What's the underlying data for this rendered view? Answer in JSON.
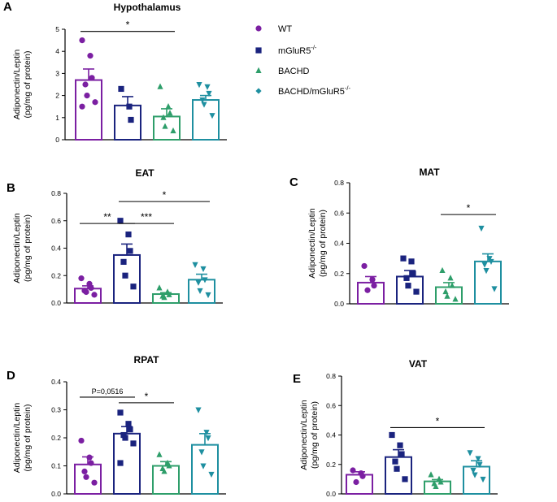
{
  "colors": {
    "WT": "#7b1fa2",
    "mGluR5": "#1a237e",
    "BACHD": "#2e9e6a",
    "BACHD_mGluR5": "#1e8fa0"
  },
  "legend": [
    {
      "key": "WT",
      "label": "WT",
      "sup": "",
      "marker": "circle"
    },
    {
      "key": "mGluR5",
      "label": "mGluR5",
      "sup": "-/-",
      "marker": "square"
    },
    {
      "key": "BACHD",
      "label": "BACHD",
      "sup": "",
      "marker": "triangle-up"
    },
    {
      "key": "BACHD_mGluR5",
      "label": "BACHD/mGluR5",
      "sup": "-/-",
      "marker": "diamond"
    }
  ],
  "chart_data": [
    {
      "panel": "A",
      "title": "Hypothalamus",
      "type": "bar",
      "ylabel_line1": "Adiponectin/Leptin",
      "ylabel_line2": "(pg/mg of protein)",
      "ylim": [
        0,
        5
      ],
      "yticks": [
        0,
        1,
        2,
        3,
        4,
        5
      ],
      "tick_labels": [
        "0",
        "1",
        "2",
        "3",
        "4",
        "5"
      ],
      "groups": [
        {
          "key": "WT",
          "mean": 2.7,
          "sem": 0.5,
          "points": [
            4.5,
            3.8,
            2.8,
            2.5,
            2.0,
            1.7,
            1.5
          ]
        },
        {
          "key": "mGluR5",
          "mean": 1.55,
          "sem": 0.4,
          "points": [
            2.3,
            1.5,
            0.9
          ]
        },
        {
          "key": "BACHD",
          "mean": 1.05,
          "sem": 0.35,
          "points": [
            2.4,
            1.5,
            1.2,
            1.0,
            0.6,
            0.4
          ]
        },
        {
          "key": "BACHD_mGluR5",
          "mean": 1.8,
          "sem": 0.2,
          "points": [
            2.5,
            2.4,
            2.1,
            1.8,
            1.6,
            1.1
          ]
        }
      ],
      "sig": [
        {
          "from": 0,
          "to": 2,
          "label": "*"
        }
      ]
    },
    {
      "panel": "B",
      "title": "EAT",
      "type": "bar",
      "ylabel_line1": "Adiponectin/Leptin",
      "ylabel_line2": "(pg/mg of protein)",
      "ylim": [
        0,
        0.8
      ],
      "yticks": [
        0,
        0.2,
        0.4,
        0.6,
        0.8
      ],
      "tick_labels": [
        "0.0",
        "0.2",
        "0.4",
        "0.6",
        "0.8"
      ],
      "groups": [
        {
          "key": "WT",
          "mean": 0.105,
          "sem": 0.02,
          "points": [
            0.18,
            0.14,
            0.11,
            0.09,
            0.08,
            0.06
          ]
        },
        {
          "key": "mGluR5",
          "mean": 0.35,
          "sem": 0.08,
          "points": [
            0.6,
            0.5,
            0.38,
            0.3,
            0.2,
            0.12
          ]
        },
        {
          "key": "BACHD",
          "mean": 0.065,
          "sem": 0.01,
          "points": [
            0.11,
            0.08,
            0.06,
            0.05,
            0.04
          ]
        },
        {
          "key": "BACHD_mGluR5",
          "mean": 0.17,
          "sem": 0.04,
          "points": [
            0.28,
            0.25,
            0.17,
            0.15,
            0.09,
            0.06
          ]
        }
      ],
      "sig": [
        {
          "from": 0,
          "to": 1,
          "label": "**"
        },
        {
          "from": 1,
          "to": 2,
          "label": "***"
        },
        {
          "from": 1,
          "to": 3,
          "label": "*"
        }
      ]
    },
    {
      "panel": "C",
      "title": "MAT",
      "type": "bar",
      "ylabel_line1": "Adiponectin/Leptin",
      "ylabel_line2": "(pg/mg of protein)",
      "ylim": [
        0,
        0.8
      ],
      "yticks": [
        0,
        0.2,
        0.4,
        0.6,
        0.8
      ],
      "tick_labels": [
        "0.0",
        "0.2",
        "0.4",
        "0.6",
        "0.8"
      ],
      "groups": [
        {
          "key": "WT",
          "mean": 0.14,
          "sem": 0.04,
          "points": [
            0.25,
            0.16,
            0.12,
            0.09
          ]
        },
        {
          "key": "mGluR5",
          "mean": 0.18,
          "sem": 0.04,
          "points": [
            0.3,
            0.28,
            0.2,
            0.17,
            0.12,
            0.08
          ]
        },
        {
          "key": "BACHD",
          "mean": 0.11,
          "sem": 0.03,
          "points": [
            0.22,
            0.17,
            0.12,
            0.08,
            0.05,
            0.03
          ]
        },
        {
          "key": "BACHD_mGluR5",
          "mean": 0.28,
          "sem": 0.05,
          "points": [
            0.5,
            0.3,
            0.28,
            0.26,
            0.22,
            0.1
          ]
        }
      ],
      "sig": [
        {
          "from": 2,
          "to": 3,
          "label": "*"
        }
      ]
    },
    {
      "panel": "D",
      "title": "RPAT",
      "type": "bar",
      "ylabel_line1": "Adiponectin/Leptin",
      "ylabel_line2": "(pg/mg of protein)",
      "ylim": [
        0,
        0.4
      ],
      "yticks": [
        0,
        0.1,
        0.2,
        0.3,
        0.4
      ],
      "tick_labels": [
        "0.0",
        "0.1",
        "0.2",
        "0.3",
        "0.4"
      ],
      "groups": [
        {
          "key": "WT",
          "mean": 0.105,
          "sem": 0.027,
          "points": [
            0.19,
            0.13,
            0.11,
            0.08,
            0.06,
            0.04
          ]
        },
        {
          "key": "mGluR5",
          "mean": 0.215,
          "sem": 0.025,
          "points": [
            0.29,
            0.25,
            0.23,
            0.21,
            0.2,
            0.18,
            0.11
          ]
        },
        {
          "key": "BACHD",
          "mean": 0.1,
          "sem": 0.015,
          "points": [
            0.14,
            0.11,
            0.1,
            0.09,
            0.08
          ]
        },
        {
          "key": "BACHD_mGluR5",
          "mean": 0.175,
          "sem": 0.04,
          "points": [
            0.3,
            0.22,
            0.2,
            0.15,
            0.1,
            0.07
          ]
        }
      ],
      "sig": [
        {
          "from": 0,
          "to": 1,
          "label": "P=0,0516",
          "small": true
        },
        {
          "from": 1,
          "to": 2,
          "label": "*"
        }
      ]
    },
    {
      "panel": "E",
      "title": "VAT",
      "type": "bar",
      "ylabel_line1": "Adiponectin/Leptin",
      "ylabel_line2": "(pg/mg of protein)",
      "ylim": [
        0,
        0.8
      ],
      "yticks": [
        0,
        0.2,
        0.4,
        0.6,
        0.8
      ],
      "tick_labels": [
        "0.0",
        "0.2",
        "0.4",
        "0.6",
        "0.8"
      ],
      "groups": [
        {
          "key": "WT",
          "mean": 0.13,
          "sem": 0.02,
          "points": [
            0.16,
            0.14,
            0.12,
            0.08
          ]
        },
        {
          "key": "mGluR5",
          "mean": 0.25,
          "sem": 0.05,
          "points": [
            0.4,
            0.33,
            0.27,
            0.22,
            0.17,
            0.1
          ]
        },
        {
          "key": "BACHD",
          "mean": 0.085,
          "sem": 0.012,
          "points": [
            0.13,
            0.1,
            0.08,
            0.07,
            0.05
          ]
        },
        {
          "key": "BACHD_mGluR5",
          "mean": 0.185,
          "sem": 0.04,
          "points": [
            0.28,
            0.24,
            0.2,
            0.16,
            0.13,
            0.1
          ]
        }
      ],
      "sig": [
        {
          "from": 1,
          "to": 3,
          "label": "*"
        }
      ]
    }
  ]
}
